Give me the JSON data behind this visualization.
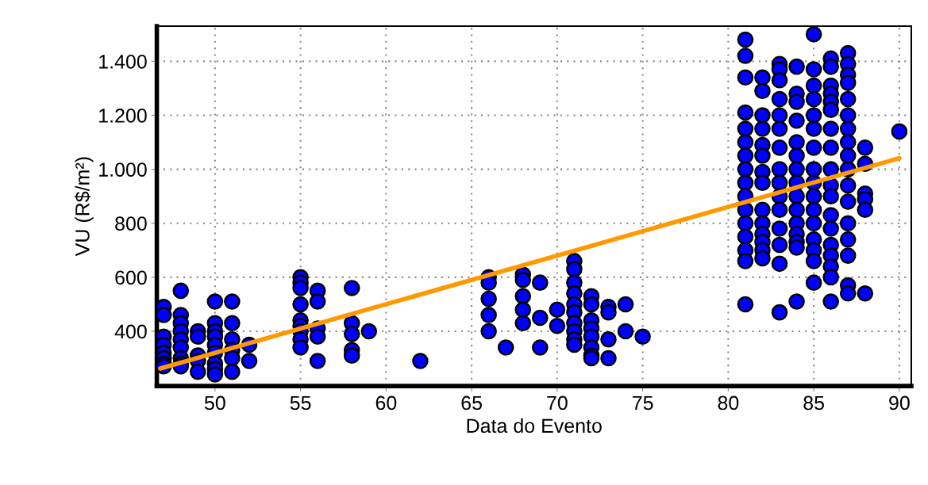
{
  "chart_data": {
    "type": "scatter",
    "xlabel": "Data do Evento",
    "ylabel": "VU (R$/m²)",
    "xlim": [
      46.6,
      90.7
    ],
    "ylim": [
      197,
      1530
    ],
    "xticks": [
      50,
      55,
      60,
      65,
      70,
      75,
      80,
      85,
      90
    ],
    "yticks": [
      {
        "value": 400,
        "label": "400"
      },
      {
        "value": 600,
        "label": "600"
      },
      {
        "value": 800,
        "label": "800"
      },
      {
        "value": 1000,
        "label": "1.000"
      },
      {
        "value": 1200,
        "label": "1.200"
      },
      {
        "value": 1400,
        "label": "1.400"
      }
    ],
    "grid": true,
    "series": [
      {
        "marker": "circle",
        "color": "#0000ff",
        "x": [
          47,
          47,
          47,
          47,
          47,
          47,
          47,
          47,
          48,
          48,
          48,
          48,
          48,
          48,
          48,
          48,
          48,
          49,
          49,
          49,
          49,
          49,
          50,
          50,
          50,
          50,
          50,
          50,
          50,
          50,
          50,
          51,
          51,
          51,
          51,
          51,
          51,
          52,
          52,
          55,
          55,
          55,
          55,
          55,
          55,
          55,
          55,
          55,
          56,
          56,
          56,
          56,
          56,
          58,
          58,
          58,
          58,
          58,
          59,
          62,
          66,
          66,
          66,
          66,
          66,
          67,
          68,
          68,
          68,
          68,
          68,
          69,
          69,
          69,
          70,
          70,
          71,
          71,
          71,
          71,
          71,
          71,
          71,
          71,
          71,
          71,
          72,
          72,
          72,
          72,
          72,
          72,
          72,
          72,
          73,
          73,
          73,
          73,
          74,
          74,
          75,
          81,
          81,
          81,
          81,
          81,
          81,
          81,
          81,
          81,
          81,
          81,
          81,
          81,
          81,
          81,
          81,
          82,
          82,
          82,
          82,
          82,
          82,
          82,
          82,
          82,
          82,
          82,
          82,
          82,
          82,
          83,
          83,
          83,
          83,
          83,
          83,
          83,
          83,
          83,
          83,
          83,
          83,
          83,
          83,
          83,
          84,
          84,
          84,
          84,
          84,
          84,
          84,
          84,
          84,
          84,
          84,
          84,
          84,
          84,
          84,
          85,
          85,
          85,
          85,
          85,
          85,
          85,
          85,
          85,
          85,
          85,
          85,
          85,
          85,
          85,
          85,
          86,
          86,
          86,
          86,
          86,
          86,
          86,
          86,
          86,
          86,
          86,
          86,
          86,
          86,
          86,
          86,
          86,
          86,
          87,
          87,
          87,
          87,
          87,
          87,
          87,
          87,
          87,
          87,
          87,
          87,
          87,
          87,
          87,
          87,
          87,
          88,
          88,
          88,
          88,
          88,
          88,
          90
        ],
        "values": [
          490,
          460,
          380,
          350,
          320,
          300,
          280,
          270,
          550,
          460,
          430,
          400,
          370,
          340,
          300,
          280,
          270,
          400,
          380,
          310,
          290,
          250,
          510,
          430,
          400,
          380,
          350,
          320,
          280,
          260,
          240,
          510,
          430,
          370,
          330,
          300,
          250,
          350,
          290,
          600,
          580,
          560,
          500,
          440,
          420,
          400,
          370,
          340,
          550,
          510,
          410,
          380,
          290,
          560,
          430,
          390,
          330,
          310,
          400,
          290,
          600,
          580,
          520,
          460,
          400,
          340,
          610,
          590,
          530,
          480,
          430,
          580,
          450,
          340,
          480,
          420,
          660,
          630,
          580,
          540,
          500,
          470,
          430,
          400,
          370,
          350,
          530,
          500,
          440,
          410,
          380,
          340,
          310,
          300,
          490,
          470,
          370,
          300,
          500,
          400,
          380,
          1480,
          1420,
          1340,
          1210,
          1150,
          1100,
          1050,
          1000,
          950,
          900,
          850,
          800,
          750,
          700,
          660,
          500,
          1340,
          1290,
          1200,
          1150,
          1090,
          1050,
          990,
          950,
          850,
          800,
          760,
          730,
          700,
          670,
          1390,
          1370,
          1330,
          1260,
          1200,
          1150,
          1080,
          1000,
          950,
          900,
          850,
          780,
          720,
          650,
          470,
          1380,
          1280,
          1250,
          1180,
          1100,
          1050,
          1000,
          950,
          900,
          850,
          800,
          760,
          730,
          710,
          510,
          1500,
          1370,
          1310,
          1260,
          1200,
          1150,
          1080,
          1000,
          950,
          900,
          850,
          800,
          740,
          700,
          660,
          580,
          1410,
          1380,
          1310,
          1280,
          1250,
          1220,
          1150,
          1080,
          1000,
          940,
          900,
          830,
          780,
          720,
          680,
          640,
          600,
          510,
          1430,
          1390,
          1350,
          1320,
          1260,
          1200,
          1150,
          1100,
          1050,
          1000,
          940,
          880,
          800,
          740,
          680,
          570,
          540,
          1080,
          1020,
          910,
          890,
          850,
          540,
          1140
        ]
      },
      {
        "type": "line",
        "color": "#ff9900",
        "x": [
          46.8,
          90
        ],
        "values": [
          262,
          1041
        ]
      }
    ]
  }
}
